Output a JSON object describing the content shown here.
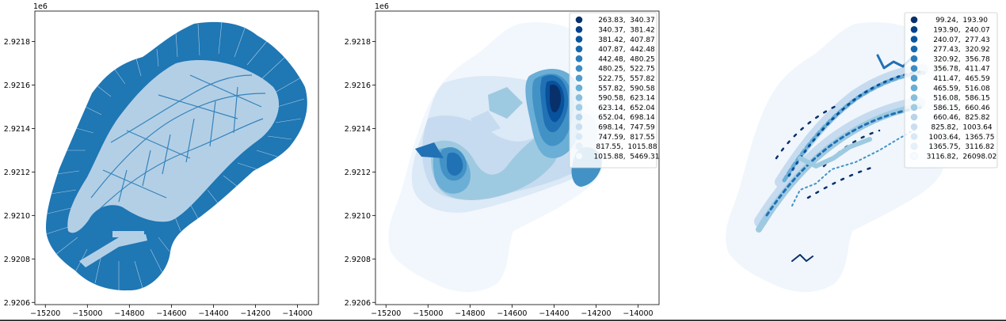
{
  "chart_data": [
    {
      "type": "map",
      "title": "",
      "offset_text": "1e6",
      "xlim": [
        -15250,
        -13900
      ],
      "ylim": [
        2920590,
        2921940
      ],
      "x_ticks": [
        -15200,
        -15000,
        -14800,
        -14600,
        -14400,
        -14200,
        -14000
      ],
      "x_tick_labels": [
        "−15200",
        "−15000",
        "−14800",
        "−14600",
        "−14400",
        "−14200",
        "−14000"
      ],
      "y_ticks": [
        2920600,
        2920800,
        2921000,
        2921200,
        2921400,
        2921600,
        2921800
      ],
      "y_tick_labels": [
        "2.9206",
        "2.9208",
        "2.9210",
        "2.9212",
        "2.9214",
        "2.9216",
        "2.9218"
      ],
      "fill_color": "#1f77b4",
      "building_color": "#aec7e8",
      "legend": []
    },
    {
      "type": "map",
      "title": "",
      "offset_text": "1e6",
      "colormap": "Blues_r",
      "xlim": [
        -15250,
        -13900
      ],
      "ylim": [
        2920590,
        2921940
      ],
      "x_ticks": [
        -15200,
        -15000,
        -14800,
        -14600,
        -14400,
        -14200,
        -14000
      ],
      "x_tick_labels": [
        "−15200",
        "−15000",
        "−14800",
        "−14600",
        "−14400",
        "−14200",
        "−14000"
      ],
      "y_ticks": [
        2920600,
        2920800,
        2921000,
        2921200,
        2921400,
        2921600,
        2921800
      ],
      "y_tick_labels": [
        "2.9206",
        "2.9208",
        "2.9210",
        "2.9212",
        "2.9214",
        "2.9216",
        "2.9218"
      ],
      "legend_position": "upper right",
      "legend": [
        {
          "label": "263.83,  340.37",
          "color": "#08306b"
        },
        {
          "label": "340.37,  381.42",
          "color": "#08418a"
        },
        {
          "label": "381.42,  407.87",
          "color": "#0b559f"
        },
        {
          "label": "407.87,  442.48",
          "color": "#1968ad"
        },
        {
          "label": "442.48,  480.25",
          "color": "#2b7bba"
        },
        {
          "label": "480.25,  522.75",
          "color": "#3d8dc4"
        },
        {
          "label": "522.75,  557.82",
          "color": "#519ccc"
        },
        {
          "label": "557.82,  590.58",
          "color": "#6aaed6"
        },
        {
          "label": "590.58,  623.14",
          "color": "#88bedc"
        },
        {
          "label": "623.14,  652.04",
          "color": "#a0cbe2"
        },
        {
          "label": "652.04,  698.14",
          "color": "#b7d4ea"
        },
        {
          "label": "698.14,  747.59",
          "color": "#cadef0"
        },
        {
          "label": "747.59,  817.55",
          "color": "#d9e8f5"
        },
        {
          "label": "817.55,  1015.88",
          "color": "#e6f0f9"
        },
        {
          "label": "1015.88,  5469.31",
          "color": "#f7fbff"
        }
      ]
    },
    {
      "type": "map",
      "title": "",
      "colormap": "Blues_r",
      "axis": "off",
      "legend_position": "upper right",
      "legend": [
        {
          "label": "99.24,  193.90",
          "color": "#08306b"
        },
        {
          "label": "193.90,  240.07",
          "color": "#08418a"
        },
        {
          "label": "240.07,  277.43",
          "color": "#0b559f"
        },
        {
          "label": "277.43,  320.92",
          "color": "#1968ad"
        },
        {
          "label": "320.92,  356.78",
          "color": "#2b7bba"
        },
        {
          "label": "356.78,  411.47",
          "color": "#3d8dc4"
        },
        {
          "label": "411.47,  465.59",
          "color": "#519ccc"
        },
        {
          "label": "465.59,  516.08",
          "color": "#6aaed6"
        },
        {
          "label": "516.08,  586.15",
          "color": "#88bedc"
        },
        {
          "label": "586.15,  660.46",
          "color": "#a0cbe2"
        },
        {
          "label": "660.46,  825.82",
          "color": "#b7d4ea"
        },
        {
          "label": "825.82,  1003.64",
          "color": "#cadef0"
        },
        {
          "label": "1003.64,  1365.75",
          "color": "#d9e8f5"
        },
        {
          "label": "1365.75,  3116.82",
          "color": "#e6f0f9"
        },
        {
          "label": "3116.82,  26098.02",
          "color": "#f7fbff"
        }
      ]
    }
  ]
}
